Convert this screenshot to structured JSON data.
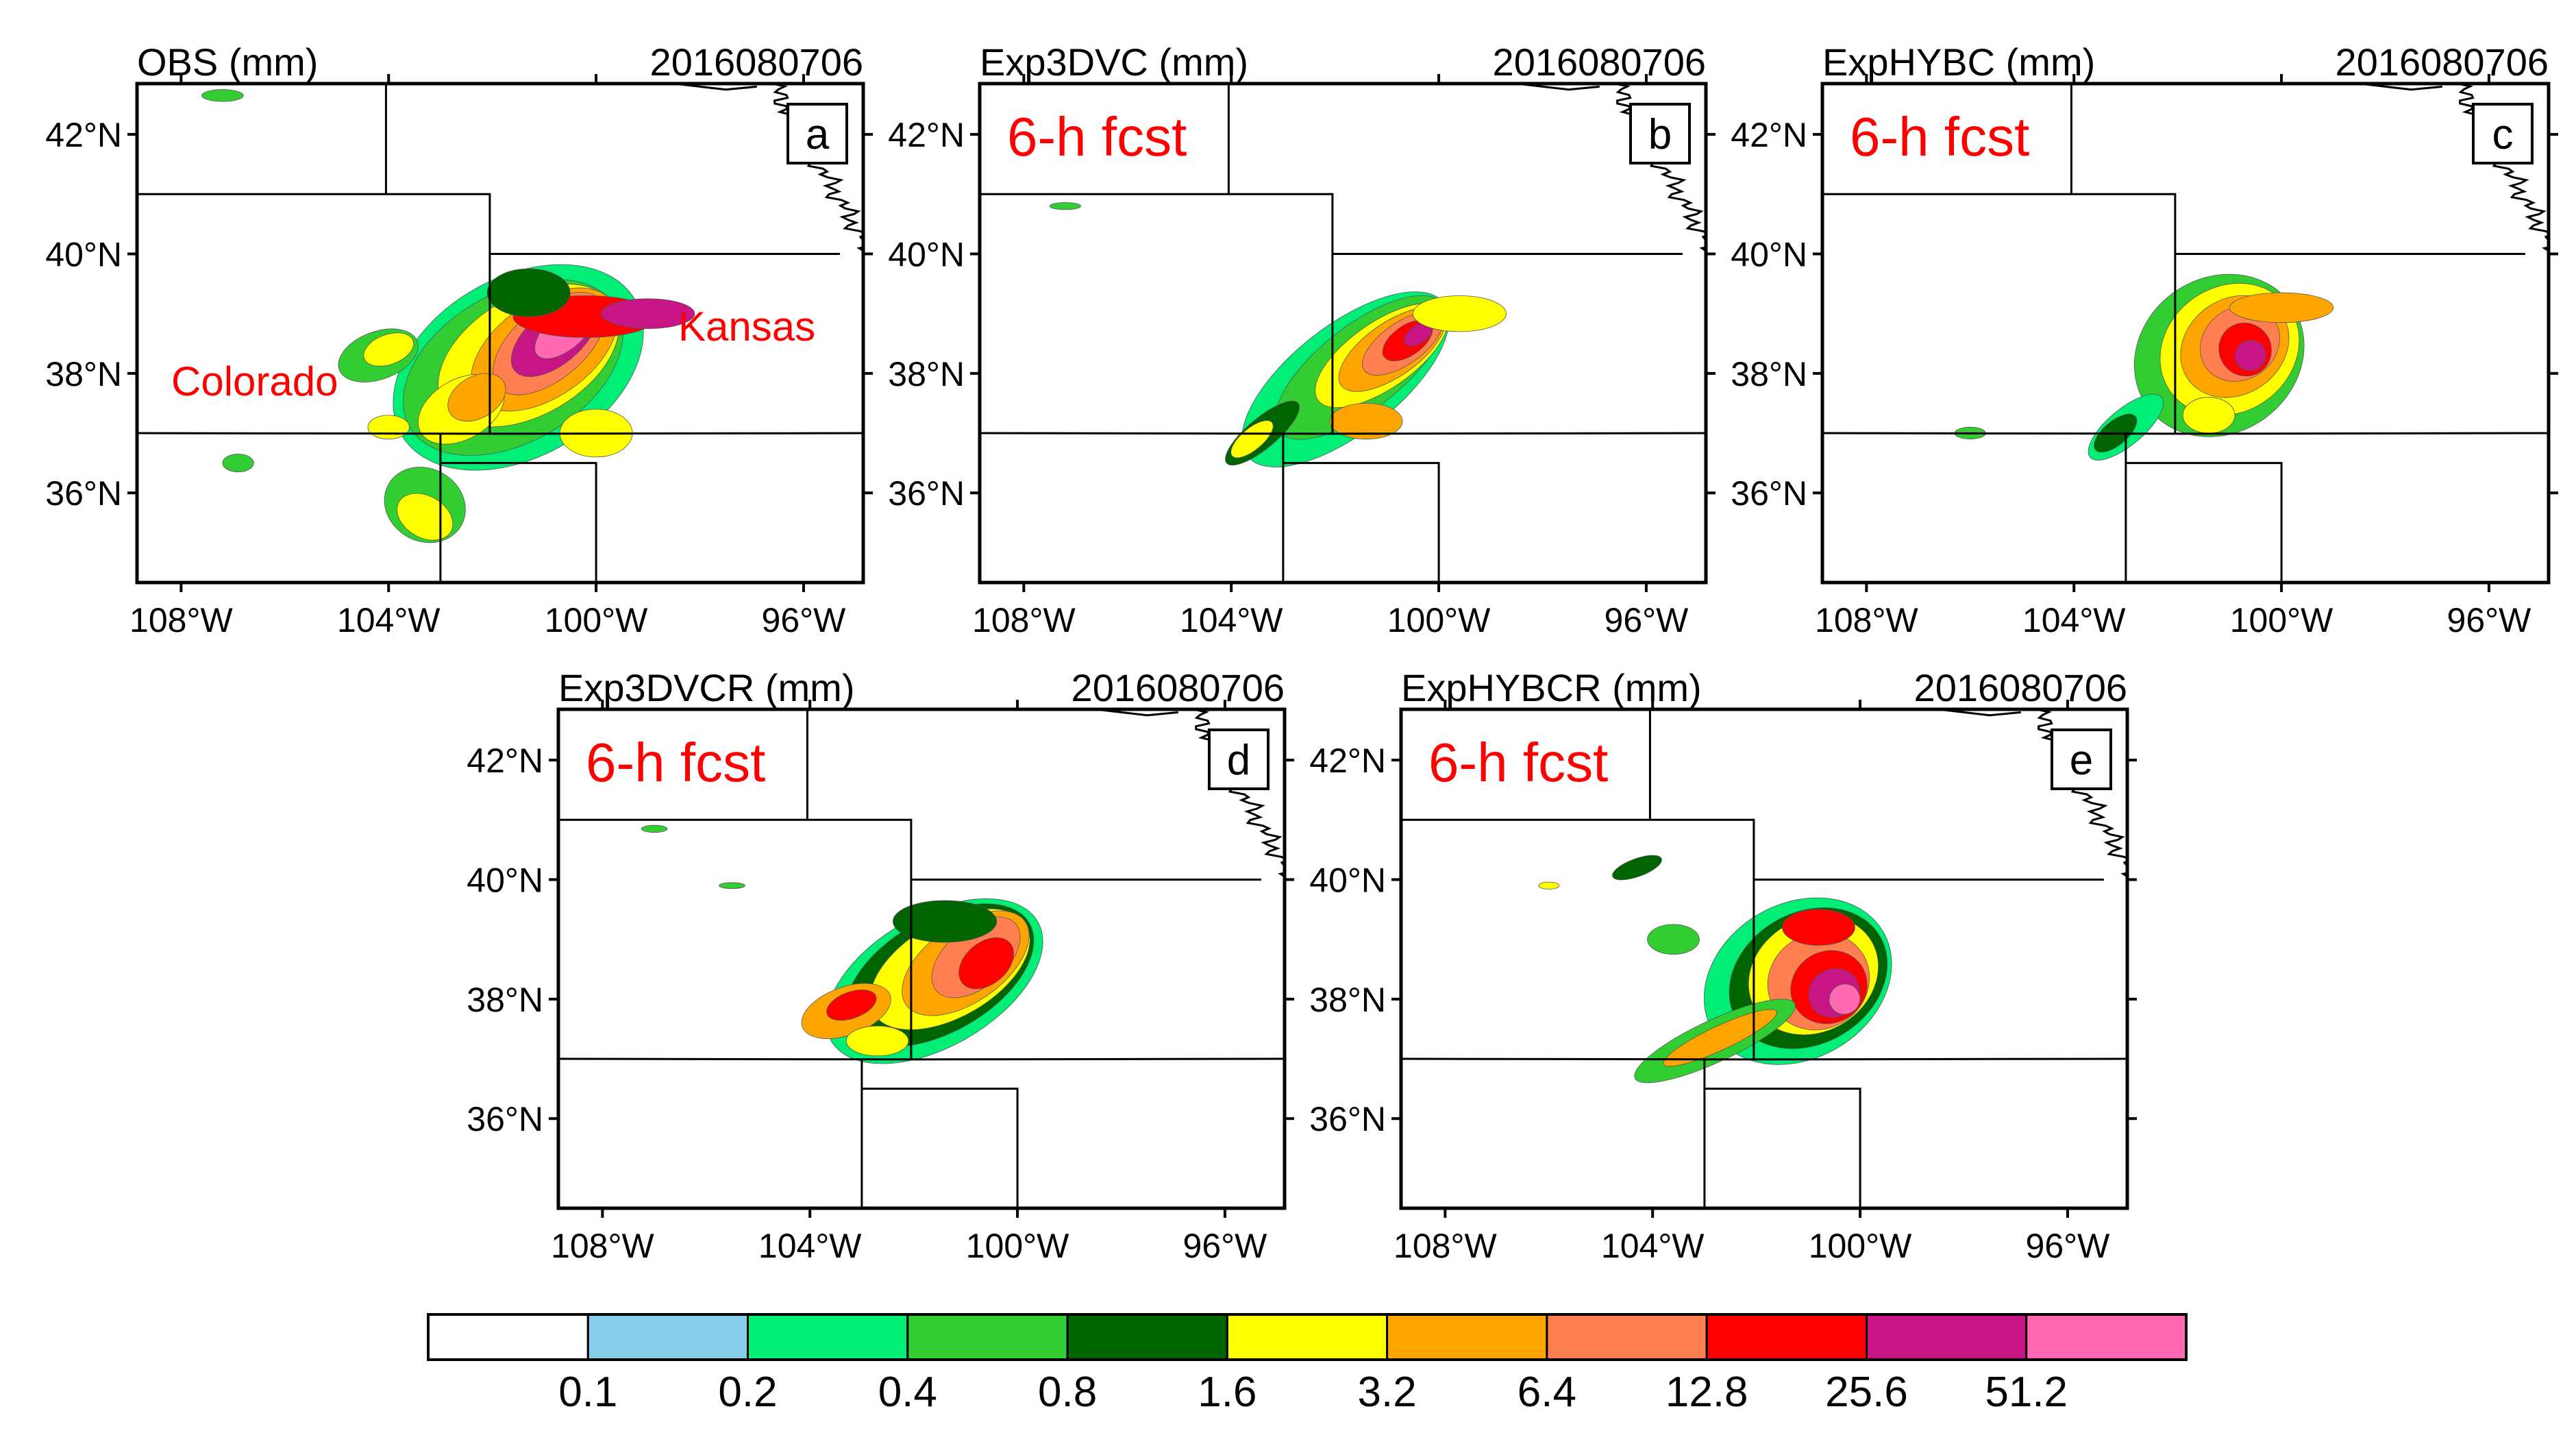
{
  "date_label": "2016080706",
  "fcst_label": "6-h fcst",
  "lat_labels": [
    "42°N",
    "40°N",
    "38°N",
    "36°N"
  ],
  "lon_labels": [
    "108°W",
    "104°W",
    "100°W",
    "96°W"
  ],
  "state_labels": {
    "colorado": "Colorado",
    "kansas": "Kansas"
  },
  "panels": [
    {
      "id": "a",
      "title": "OBS (mm)",
      "letter": "a",
      "show_fcst": false,
      "show_states": true
    },
    {
      "id": "b",
      "title": "Exp3DVC (mm)",
      "letter": "b",
      "show_fcst": true,
      "show_states": false
    },
    {
      "id": "c",
      "title": "ExpHYBC (mm)",
      "letter": "c",
      "show_fcst": true,
      "show_states": false
    },
    {
      "id": "d",
      "title": "Exp3DVCR (mm)",
      "letter": "d",
      "show_fcst": true,
      "show_states": false
    },
    {
      "id": "e",
      "title": "ExpHYBCR (mm)",
      "letter": "e",
      "show_fcst": true,
      "show_states": false
    }
  ],
  "colorbar": {
    "colors": [
      "#ffffff",
      "#87ceeb",
      "#00ee76",
      "#32cd32",
      "#006400",
      "#ffff00",
      "#ffa500",
      "#ff7f50",
      "#ff0000",
      "#c71585",
      "#ff69b4"
    ],
    "labels": [
      "0.1",
      "0.2",
      "0.4",
      "0.8",
      "1.6",
      "3.2",
      "6.4",
      "12.8",
      "25.6",
      "51.2"
    ]
  },
  "title_color": "#ff0000"
}
